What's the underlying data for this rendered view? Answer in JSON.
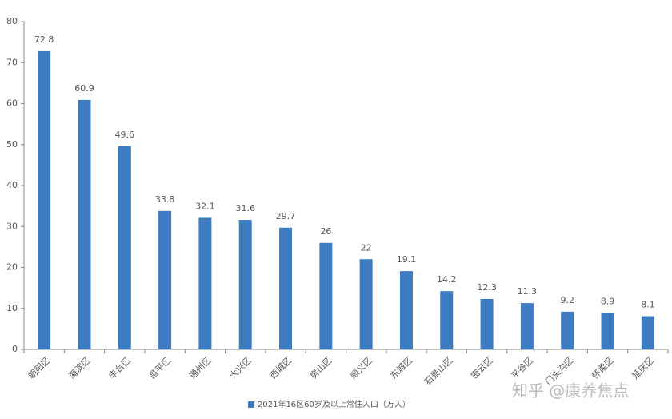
{
  "chart_data": {
    "type": "bar",
    "categories": [
      "朝阳区",
      "海淀区",
      "丰台区",
      "昌平区",
      "通州区",
      "大兴区",
      "西城区",
      "房山区",
      "顺义区",
      "东城区",
      "石景山区",
      "密云区",
      "平谷区",
      "门头沟区",
      "怀柔区",
      "延庆区"
    ],
    "series": [
      {
        "name": "2021年16区60岁及以上常住人口（万人）",
        "color": "#3d7cc0",
        "values": [
          72.8,
          60.9,
          49.6,
          33.8,
          32.1,
          31.6,
          29.7,
          26,
          22,
          19.1,
          14.2,
          12.3,
          11.3,
          9.2,
          8.9,
          8.1
        ]
      }
    ],
    "ylim": [
      0,
      80
    ],
    "yticks": [
      0,
      10,
      20,
      30,
      40,
      50,
      60,
      70,
      80
    ],
    "legend": "bottom",
    "watermark": "知乎 @康养焦点"
  }
}
